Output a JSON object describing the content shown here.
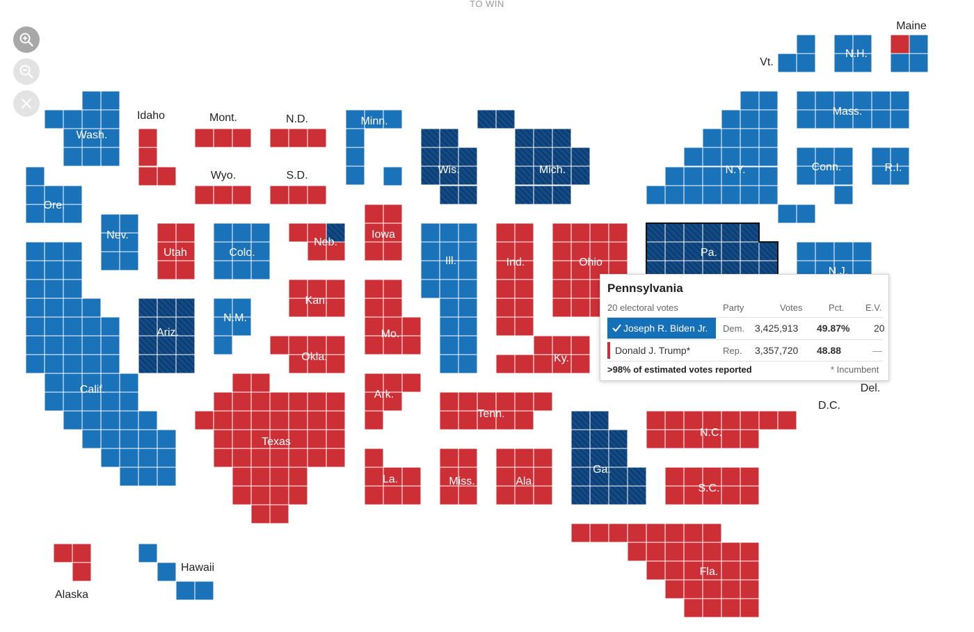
{
  "header": {
    "label": "TO WIN"
  },
  "controls": {
    "zoom_in": "zoom-in-icon",
    "zoom_out": "zoom-out-icon",
    "close": "close-icon"
  },
  "colors": {
    "dem": "#1a72b9",
    "rep": "#cc3036",
    "dem_flip": "#124a85",
    "grid_line": "#ffffff"
  },
  "legend_state_labels": {
    "Wash.": "dem",
    "Ore.": "dem",
    "Calif.": "dem",
    "Nev.": "dem",
    "Idaho": "rep",
    "Mont.": "rep",
    "Wyo.": "rep",
    "Utah": "rep",
    "Colo.": "dem",
    "Ariz.": "dem_flip",
    "N.M.": "dem",
    "N.D.": "rep",
    "S.D.": "rep",
    "Neb.": "rep",
    "Kan.": "rep",
    "Okla.": "rep",
    "Texas": "rep",
    "Minn.": "dem",
    "Iowa": "rep",
    "Mo.": "rep",
    "Ark.": "rep",
    "La.": "rep",
    "Wis.": "dem_flip",
    "Ill.": "dem",
    "Mich.": "dem_flip",
    "Ind.": "rep",
    "Ohio": "rep",
    "Ky.": "rep",
    "Tenn.": "rep",
    "Miss.": "rep",
    "Ala.": "rep",
    "Ga.": "dem_flip",
    "Fla.": "rep",
    "S.C.": "rep",
    "N.C.": "rep",
    "Pa.": "dem_flip",
    "N.Y.": "dem",
    "N.J.": "dem",
    "Vt.": "dem",
    "N.H.": "dem",
    "Maine": "dem",
    "Mass.": "dem",
    "Conn.": "dem",
    "R.I.": "dem",
    "Del.": "dem",
    "D.C.": "dem",
    "Alaska": "rep",
    "Hawaii": "dem"
  },
  "map_labels": {
    "wash": "Wash.",
    "ore": "Ore.",
    "calif": "Calif.",
    "nev": "Nev.",
    "idaho": "Idaho",
    "mont": "Mont.",
    "wyo": "Wyo.",
    "utah": "Utah",
    "colo": "Colo.",
    "ariz": "Ariz.",
    "nm": "N.M.",
    "nd": "N.D.",
    "sd": "S.D.",
    "neb": "Neb.",
    "kan": "Kan.",
    "okla": "Okla.",
    "texas": "Texas",
    "minn": "Minn.",
    "iowa": "Iowa",
    "mo": "Mo.",
    "ark": "Ark.",
    "la": "La.",
    "wis": "Wis.",
    "ill": "Ill.",
    "mich": "Mich.",
    "ind": "Ind.",
    "ohio": "Ohio",
    "ky": "Ky.",
    "tenn": "Tenn.",
    "miss": "Miss.",
    "ala": "Ala.",
    "ga": "Ga.",
    "fla": "Fla.",
    "sc": "S.C.",
    "nc": "N.C.",
    "pa": "Pa.",
    "ny": "N.Y.",
    "nj": "N.J.",
    "vt": "Vt.",
    "nh": "N.H.",
    "maine": "Maine",
    "mass": "Mass.",
    "conn": "Conn.",
    "ri": "R.I.",
    "del": "Del.",
    "dc": "D.C.",
    "alaska": "Alaska",
    "hawaii": "Hawaii"
  },
  "tooltip": {
    "state": "Pennsylvania",
    "electoral_votes_label": "20 electoral votes",
    "headers": {
      "party": "Party",
      "votes": "Votes",
      "pct": "Pct.",
      "ev": "E.V."
    },
    "candidates": [
      {
        "name": "Joseph R. Biden Jr.",
        "party": "Dem.",
        "votes": "3,425,913",
        "pct": "49.87%",
        "ev": "20",
        "winner": true
      },
      {
        "name": "Donald J. Trump*",
        "party": "Rep.",
        "votes": "3,357,720",
        "pct": "48.88",
        "ev": "—",
        "winner": false
      }
    ],
    "reporting": ">98% of estimated votes reported",
    "footnote": "* Incumbent"
  }
}
